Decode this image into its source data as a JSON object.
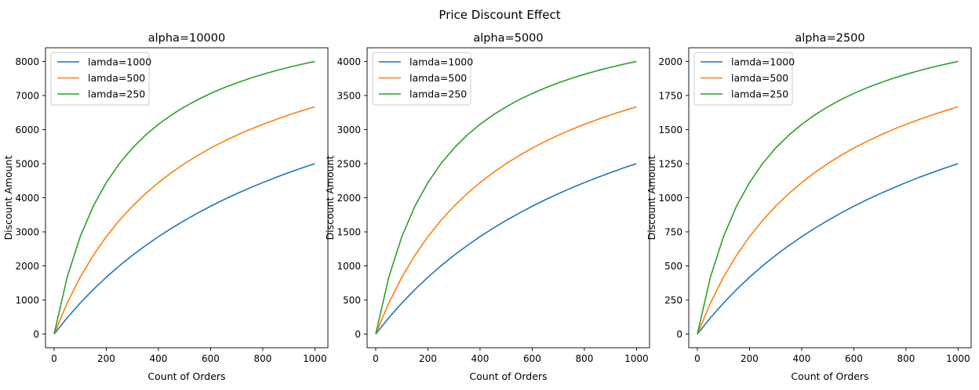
{
  "figure": {
    "suptitle": "Price Discount Effect"
  },
  "colors": {
    "lamda=1000": "#1f77b4",
    "lamda=500": "#ff7f0e",
    "lamda=250": "#2ca02c"
  },
  "chart_data": [
    {
      "type": "line",
      "title": "alpha=10000",
      "xlabel": "Count of Orders",
      "ylabel": "Discount Amount",
      "xlim": [
        -33,
        1050
      ],
      "ylim": [
        -400,
        8400
      ],
      "xticks": [
        0,
        200,
        400,
        600,
        800,
        1000
      ],
      "yticks": [
        0,
        1000,
        2000,
        3000,
        4000,
        5000,
        6000,
        7000,
        8000
      ],
      "legend": "upper-left",
      "grid": false,
      "x": [
        0,
        50,
        100,
        150,
        200,
        250,
        300,
        350,
        400,
        450,
        500,
        550,
        600,
        650,
        700,
        750,
        800,
        850,
        900,
        950,
        1000
      ],
      "series": [
        {
          "name": "lamda=1000",
          "values": [
            0,
            476,
            909,
            1304,
            1667,
            2000,
            2308,
            2593,
            2857,
            3103,
            3333,
            3548,
            3750,
            3939,
            4118,
            4286,
            4444,
            4595,
            4737,
            4872,
            5000
          ]
        },
        {
          "name": "lamda=500",
          "values": [
            0,
            909,
            1667,
            2308,
            2857,
            3333,
            3750,
            4118,
            4444,
            4737,
            5000,
            5238,
            5455,
            5652,
            5833,
            6000,
            6154,
            6296,
            6429,
            6552,
            6667
          ]
        },
        {
          "name": "lamda=250",
          "values": [
            0,
            1667,
            2857,
            3750,
            4444,
            5000,
            5455,
            5833,
            6154,
            6429,
            6667,
            6875,
            7059,
            7222,
            7368,
            7500,
            7619,
            7727,
            7826,
            7917,
            8000
          ]
        }
      ]
    },
    {
      "type": "line",
      "title": "alpha=5000",
      "xlabel": "Count of Orders",
      "ylabel": "Discount Amount",
      "xlim": [
        -33,
        1050
      ],
      "ylim": [
        -200,
        4200
      ],
      "xticks": [
        0,
        200,
        400,
        600,
        800,
        1000
      ],
      "yticks": [
        0,
        500,
        1000,
        1500,
        2000,
        2500,
        3000,
        3500,
        4000
      ],
      "legend": "upper-left",
      "grid": false,
      "x": [
        0,
        50,
        100,
        150,
        200,
        250,
        300,
        350,
        400,
        450,
        500,
        550,
        600,
        650,
        700,
        750,
        800,
        850,
        900,
        950,
        1000
      ],
      "series": [
        {
          "name": "lamda=1000",
          "values": [
            0,
            238,
            455,
            652,
            833,
            1000,
            1154,
            1296,
            1429,
            1552,
            1667,
            1774,
            1875,
            1970,
            2059,
            2143,
            2222,
            2297,
            2368,
            2436,
            2500
          ]
        },
        {
          "name": "lamda=500",
          "values": [
            0,
            455,
            833,
            1154,
            1429,
            1667,
            1875,
            2059,
            2222,
            2368,
            2500,
            2619,
            2727,
            2826,
            2917,
            3000,
            3077,
            3148,
            3214,
            3276,
            3333
          ]
        },
        {
          "name": "lamda=250",
          "values": [
            0,
            833,
            1429,
            1875,
            2222,
            2500,
            2727,
            2917,
            3077,
            3214,
            3333,
            3438,
            3529,
            3611,
            3684,
            3750,
            3810,
            3864,
            3913,
            3958,
            4000
          ]
        }
      ]
    },
    {
      "type": "line",
      "title": "alpha=2500",
      "xlabel": "Count of Orders",
      "ylabel": "Discount Amount",
      "xlim": [
        -33,
        1050
      ],
      "ylim": [
        -100,
        2100
      ],
      "xticks": [
        0,
        200,
        400,
        600,
        800,
        1000
      ],
      "yticks": [
        0,
        250,
        500,
        750,
        1000,
        1250,
        1500,
        1750,
        2000
      ],
      "legend": "upper-left",
      "grid": false,
      "x": [
        0,
        50,
        100,
        150,
        200,
        250,
        300,
        350,
        400,
        450,
        500,
        550,
        600,
        650,
        700,
        750,
        800,
        850,
        900,
        950,
        1000
      ],
      "series": [
        {
          "name": "lamda=1000",
          "values": [
            0,
            119,
            227,
            326,
            417,
            500,
            577,
            648,
            714,
            776,
            833,
            887,
            938,
            985,
            1029,
            1071,
            1111,
            1149,
            1184,
            1218,
            1250
          ]
        },
        {
          "name": "lamda=500",
          "values": [
            0,
            227,
            417,
            577,
            714,
            833,
            938,
            1029,
            1111,
            1184,
            1250,
            1310,
            1364,
            1413,
            1458,
            1500,
            1538,
            1574,
            1607,
            1638,
            1667
          ]
        },
        {
          "name": "lamda=250",
          "values": [
            0,
            417,
            714,
            938,
            1111,
            1250,
            1364,
            1458,
            1538,
            1607,
            1667,
            1719,
            1765,
            1806,
            1842,
            1875,
            1905,
            1932,
            1957,
            1979,
            2000
          ]
        }
      ]
    }
  ]
}
